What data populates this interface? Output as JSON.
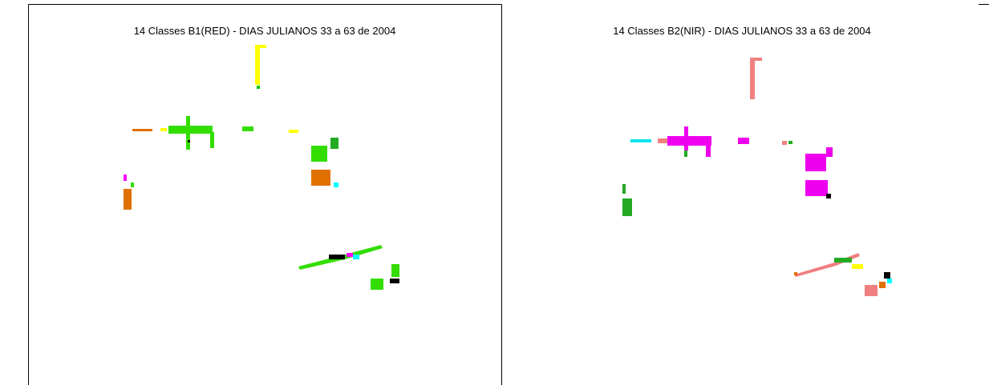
{
  "panels": [
    {
      "title": "14 Classes B1(RED) - DIAS JULIANOS 33 a 63 de 2004"
    },
    {
      "title": "14 Classes B2(NIR) - DIAS JULIANOS 33 a 63 de 2004"
    }
  ]
}
